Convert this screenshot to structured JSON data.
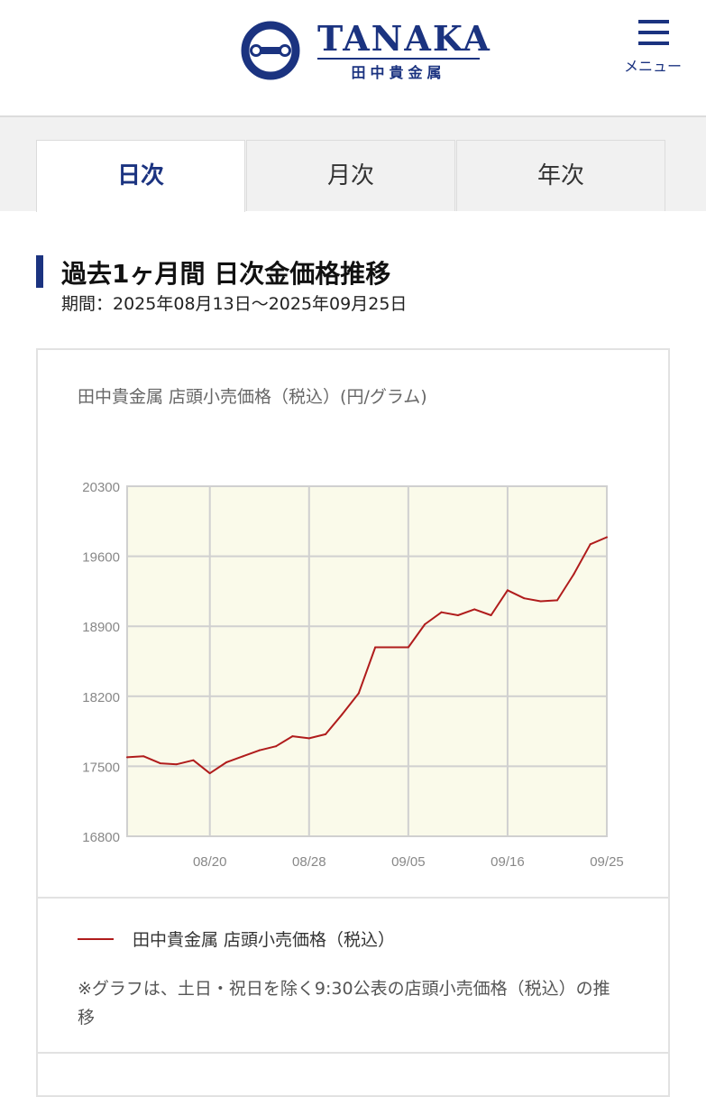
{
  "header": {
    "logo_word": "TANAKA",
    "logo_sub": "田中貴金属",
    "menu_label": "メニュー",
    "brand_color": "#1b3380"
  },
  "tabs": [
    {
      "label": "日次",
      "active": true
    },
    {
      "label": "月次",
      "active": false
    },
    {
      "label": "年次",
      "active": false
    }
  ],
  "section": {
    "title": "過去1ヶ月間 日次金価格推移",
    "period": "期間：2025年08月13日〜2025年09月25日"
  },
  "chart_caption": "田中貴金属 店頭小売価格（税込）(円/グラム)",
  "chart_data": {
    "type": "line",
    "title": "田中貴金属 店頭小売価格（税込）(円/グラム)",
    "xlabel": "",
    "ylabel": "",
    "ylim": [
      16800,
      20300
    ],
    "yticks": [
      20300,
      19600,
      18900,
      18200,
      17500,
      16800
    ],
    "xtick_labels": [
      "08/20",
      "08/28",
      "09/05",
      "09/16",
      "09/25"
    ],
    "grid": true,
    "legend_position": "bottom",
    "plot_background": "#fafaea",
    "line_color": "#b01c1c",
    "series": [
      {
        "name": "田中貴金属 店頭小売価格（税込）",
        "dates": [
          "08/13",
          "08/14",
          "08/15",
          "08/18",
          "08/19",
          "08/20",
          "08/21",
          "08/22",
          "08/25",
          "08/26",
          "08/27",
          "08/28",
          "08/29",
          "09/01",
          "09/02",
          "09/03",
          "09/04",
          "09/05",
          "09/08",
          "09/09",
          "09/10",
          "09/11",
          "09/12",
          "09/16",
          "09/17",
          "09/18",
          "09/19",
          "09/22",
          "09/24",
          "09/25"
        ],
        "values": [
          17590,
          17600,
          17530,
          17520,
          17560,
          17430,
          17540,
          17600,
          17660,
          17700,
          17800,
          17780,
          17820,
          18020,
          18230,
          18690,
          18690,
          18690,
          18920,
          19040,
          19010,
          19070,
          19010,
          19260,
          19180,
          19150,
          19160,
          19420,
          19720,
          19790
        ]
      }
    ]
  },
  "legend_label": "田中貴金属 店頭小売価格（税込）",
  "note": "※グラフは、土日・祝日を除く9:30公表の店頭小売価格（税込）の推移"
}
